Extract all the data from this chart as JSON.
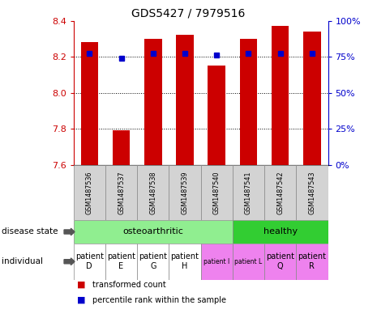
{
  "title": "GDS5427 / 7979516",
  "samples": [
    "GSM1487536",
    "GSM1487537",
    "GSM1487538",
    "GSM1487539",
    "GSM1487540",
    "GSM1487541",
    "GSM1487542",
    "GSM1487543"
  ],
  "red_values": [
    8.28,
    7.79,
    8.3,
    8.32,
    8.15,
    8.3,
    8.37,
    8.34
  ],
  "blue_values": [
    8.22,
    8.19,
    8.22,
    8.22,
    8.21,
    8.22,
    8.22,
    8.22
  ],
  "ymin": 7.6,
  "ymax": 8.4,
  "yticks": [
    7.6,
    7.8,
    8.0,
    8.2,
    8.4
  ],
  "y2ticks": [
    0,
    25,
    50,
    75,
    100
  ],
  "y2labels": [
    "0%",
    "25%",
    "50%",
    "75%",
    "100%"
  ],
  "disease_state_labels": [
    "osteoarthritic",
    "healthy"
  ],
  "disease_state_colors": [
    "#90ee90",
    "#32cd32"
  ],
  "disease_state_ranges": [
    [
      0,
      5
    ],
    [
      5,
      8
    ]
  ],
  "individual_labels": [
    "patient\nD",
    "patient\nE",
    "patient\nG",
    "patient\nH",
    "patient I",
    "patient L",
    "patient\nQ",
    "patient\nR"
  ],
  "individual_colors": [
    "#ffffff",
    "#ffffff",
    "#ffffff",
    "#ffffff",
    "#ee82ee",
    "#ee82ee",
    "#ee82ee",
    "#ee82ee"
  ],
  "individual_fontsize_big": [
    true,
    true,
    true,
    true,
    false,
    false,
    true,
    true
  ],
  "bar_color": "#cc0000",
  "dot_color": "#0000cc",
  "bar_bottom": 7.6,
  "legend_red": "transformed count",
  "legend_blue": "percentile rank within the sample"
}
